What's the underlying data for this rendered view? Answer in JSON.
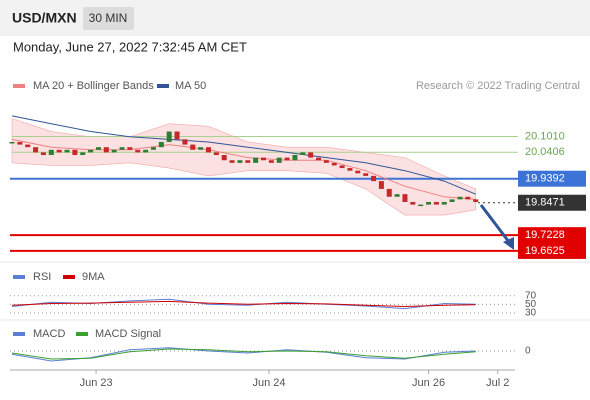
{
  "header": {
    "symbol": "USD/MXN",
    "interval": "30 MIN",
    "date": "Monday, June 27, 2022 7:32:45 AM CET"
  },
  "chart_data": {
    "type": "candlestick",
    "legend": [
      "MA 20 + Bollinger Bands",
      "MA 50"
    ],
    "legend_colors": [
      "#f08080",
      "#2f5597"
    ],
    "credit": "Research © 2022 Trading Central",
    "x": [
      0,
      1,
      2,
      3,
      4,
      5,
      6,
      7,
      8,
      9,
      10,
      11,
      12,
      13,
      14,
      15,
      16,
      17,
      18,
      19,
      20,
      21,
      22,
      23,
      24,
      25,
      26,
      27,
      28,
      29,
      30,
      31,
      32,
      33,
      34,
      35,
      36,
      37,
      38,
      39,
      40,
      41,
      42,
      43,
      44,
      45,
      46,
      47,
      48,
      49,
      50,
      51,
      52,
      53,
      54,
      55,
      56,
      57,
      58,
      59
    ],
    "close": [
      20.08,
      20.07,
      20.06,
      20.04,
      20.03,
      20.05,
      20.04,
      20.05,
      20.03,
      20.04,
      20.05,
      20.06,
      20.04,
      20.05,
      20.06,
      20.05,
      20.04,
      20.05,
      20.06,
      20.08,
      20.12,
      20.09,
      20.07,
      20.05,
      20.06,
      20.04,
      20.03,
      20.01,
      20.0,
      20.01,
      20.0,
      20.02,
      20.01,
      20.0,
      20.02,
      20.01,
      20.03,
      20.04,
      20.02,
      20.01,
      20.0,
      19.99,
      19.98,
      19.97,
      19.96,
      19.95,
      19.93,
      19.9,
      19.87,
      19.88,
      19.85,
      19.84,
      19.84,
      19.85,
      19.84,
      19.85,
      19.86,
      19.87,
      19.86,
      19.85
    ],
    "ind_x": [
      0,
      5,
      10,
      15,
      20,
      25,
      30,
      35,
      40,
      45,
      50,
      55,
      59
    ],
    "ma20": [
      20.09,
      20.06,
      20.05,
      20.05,
      20.07,
      20.05,
      20.02,
      20.01,
      20.01,
      19.97,
      19.91,
      19.87,
      19.86
    ],
    "bb_upper": [
      20.17,
      20.12,
      20.1,
      20.1,
      20.15,
      20.14,
      20.08,
      20.06,
      20.06,
      20.04,
      20.02,
      19.95,
      19.9
    ],
    "bb_lower": [
      20.0,
      19.99,
      19.99,
      20.0,
      19.98,
      19.95,
      19.97,
      19.97,
      19.96,
      19.9,
      19.8,
      19.8,
      19.82
    ],
    "ma50": [
      20.18,
      20.15,
      20.12,
      20.1,
      20.09,
      20.08,
      20.06,
      20.04,
      20.02,
      20.0,
      19.97,
      19.93,
      19.88
    ],
    "up_color": "#2e7d32",
    "down_color": "#c62828",
    "ylim": [
      19.62,
      20.26
    ],
    "xlim": [
      0,
      64
    ],
    "xticks": [
      {
        "value": 10.7,
        "label": "Jun 23"
      },
      {
        "value": 32.7,
        "label": "Jun 24"
      },
      {
        "value": 53,
        "label": "Jun 26"
      },
      {
        "value": 61.8,
        "label": "Jul 2"
      }
    ],
    "levels": [
      {
        "value": 20.101,
        "label": "20.1010",
        "color": "#a9d18e",
        "box": false,
        "dotted": false,
        "full": false
      },
      {
        "value": 20.0406,
        "label": "20.0406",
        "color": "#a9d18e",
        "box": false,
        "dotted": false,
        "full": false
      },
      {
        "value": 19.9392,
        "label": "19.9392",
        "color": "#3b73d6",
        "box": true,
        "dotted": false,
        "full": true
      },
      {
        "value": 19.8471,
        "label": "19.8471",
        "color": "#333333",
        "box": true,
        "dotted": true,
        "full": false
      },
      {
        "value": 19.7228,
        "label": "19.7228",
        "color": "#e00000",
        "box": true,
        "dotted": false,
        "full": true
      },
      {
        "value": 19.6625,
        "label": "19.6625",
        "color": "#e00000",
        "box": true,
        "dotted": false,
        "full": true
      }
    ],
    "rsi": {
      "legend": [
        "RSI",
        "9MA"
      ],
      "colors": [
        "#5b7fd6",
        "#d00000"
      ],
      "ylim": [
        18,
        100
      ],
      "yticks": [
        70,
        50,
        30
      ],
      "rsi": [
        45,
        55,
        52,
        58,
        62,
        50,
        48,
        55,
        50,
        46,
        40,
        52,
        50
      ],
      "ma9": [
        48,
        52,
        53,
        55,
        57,
        53,
        50,
        52,
        51,
        48,
        45,
        48,
        49
      ]
    },
    "macd": {
      "legend": [
        "MACD",
        "MACD Signal"
      ],
      "colors": [
        "#5b7fd6",
        "#3aa02e"
      ],
      "ylim": [
        -0.03,
        0.03
      ],
      "yticks": [
        0
      ],
      "macd": [
        -0.005,
        -0.015,
        -0.01,
        0.002,
        0.005,
        0.0,
        -0.003,
        0.002,
        -0.002,
        -0.01,
        -0.012,
        -0.002,
        0.0
      ],
      "signal": [
        -0.003,
        -0.012,
        -0.011,
        -0.001,
        0.003,
        0.002,
        -0.001,
        0.0,
        -0.001,
        -0.007,
        -0.011,
        -0.005,
        -0.001
      ]
    }
  }
}
